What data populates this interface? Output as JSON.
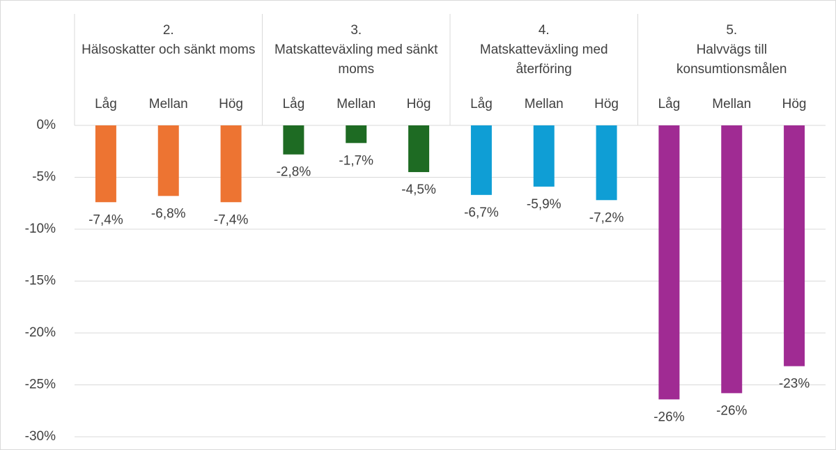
{
  "chart_data": {
    "type": "bar",
    "ylim": [
      -30,
      0
    ],
    "yticks": [
      {
        "value": 0,
        "label": "0%"
      },
      {
        "value": -5,
        "label": "-5%"
      },
      {
        "value": -10,
        "label": "-10%"
      },
      {
        "value": -15,
        "label": "-15%"
      },
      {
        "value": -20,
        "label": "-20%"
      },
      {
        "value": -25,
        "label": "-25%"
      },
      {
        "value": -30,
        "label": "-30%"
      }
    ],
    "grid": true,
    "series": [
      {
        "name": "2.\nHälsoskatter och sänkt moms",
        "color": "#ed7432",
        "categories": [
          "Låg",
          "Mellan",
          "Hög"
        ],
        "values": [
          -7.4,
          -6.8,
          -7.4
        ],
        "value_labels": [
          "-7,4%",
          "-6,8%",
          "-7,4%"
        ]
      },
      {
        "name": "3.\nMatskatteväxling med sänkt moms",
        "color": "#1e6b23",
        "categories": [
          "Låg",
          "Mellan",
          "Hög"
        ],
        "values": [
          -2.8,
          -1.7,
          -4.5
        ],
        "value_labels": [
          "-2,8%",
          "-1,7%",
          "-4,5%"
        ]
      },
      {
        "name": "4.\nMatskatteväxling med återföring",
        "color": "#0f9ed5",
        "categories": [
          "Låg",
          "Mellan",
          "Hög"
        ],
        "values": [
          -6.7,
          -5.9,
          -7.2
        ],
        "value_labels": [
          "-6,7%",
          "-5,9%",
          "-7,2%"
        ]
      },
      {
        "name": "5.\nHalvvägs till konsumtionsmålen",
        "color": "#a02b93",
        "categories": [
          "Låg",
          "Mellan",
          "Hög"
        ],
        "values": [
          -26.4,
          -25.8,
          -23.2
        ],
        "value_labels": [
          "-26%",
          "-26%",
          "-23%"
        ]
      }
    ]
  }
}
